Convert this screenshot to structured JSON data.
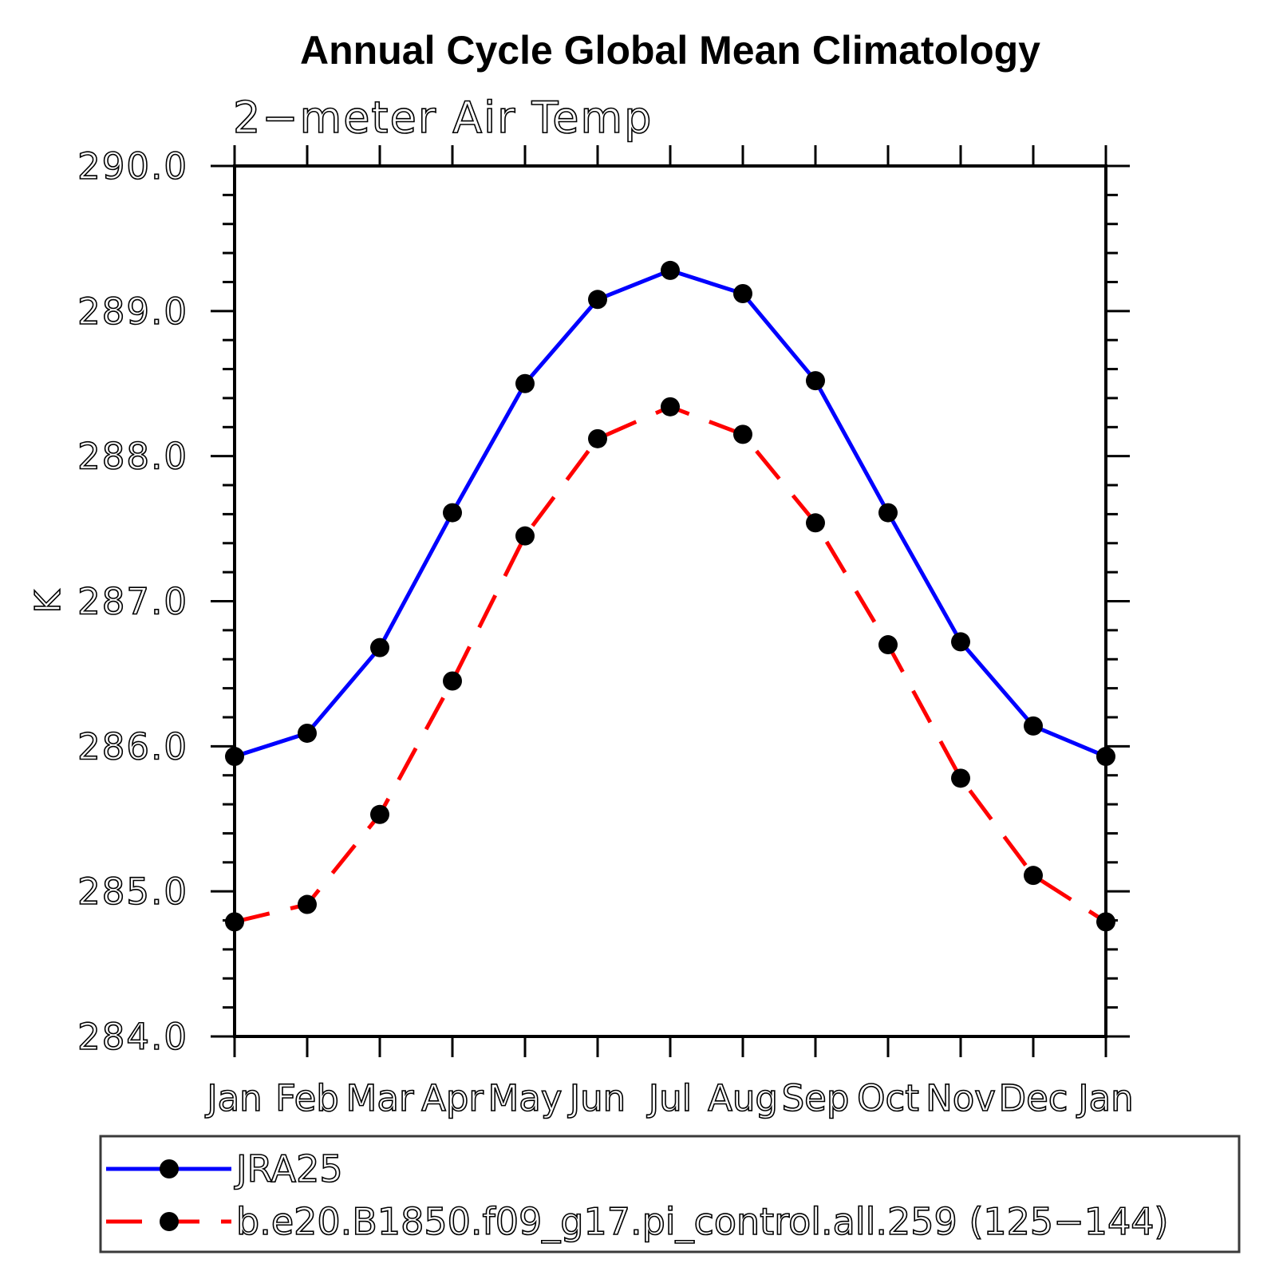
{
  "chart_data": {
    "type": "line",
    "title": "Annual Cycle Global Mean Climatology",
    "subtitle": "2−meter Air Temp",
    "ylabel": "K",
    "xlabel": "",
    "ylim": [
      284.0,
      290.0
    ],
    "ytick_step": 1.0,
    "yminor_step": 0.2,
    "ytick_label_format": "one_decimal",
    "grid": false,
    "tick_direction": "out",
    "axis_color": "#000000",
    "categories": [
      "Jan",
      "Feb",
      "Mar",
      "Apr",
      "May",
      "Jun",
      "Jul",
      "Aug",
      "Sep",
      "Oct",
      "Nov",
      "Dec",
      "Jan"
    ],
    "series": [
      {
        "id": "jra25",
        "name": "JRA25",
        "color": "#0000ff",
        "line_style": "solid",
        "dash": "",
        "marker": "filled-circle",
        "marker_color": "#000000",
        "values": [
          285.93,
          286.09,
          286.68,
          287.61,
          288.5,
          289.08,
          289.28,
          289.12,
          288.52,
          287.61,
          286.72,
          286.14,
          285.93
        ]
      },
      {
        "id": "b-e20-b1850-pi-control",
        "name": "b.e20.B1850.f09_g17.pi_control.all.259 (125−144)",
        "color": "#ff0000",
        "line_style": "dashed",
        "dash": "45 27",
        "marker": "filled-circle",
        "marker_color": "#000000",
        "values": [
          284.79,
          284.91,
          285.53,
          286.45,
          287.45,
          288.12,
          288.34,
          288.15,
          287.54,
          286.7,
          285.78,
          285.11,
          284.79
        ]
      }
    ],
    "legend_position": "bottom-left-box"
  }
}
